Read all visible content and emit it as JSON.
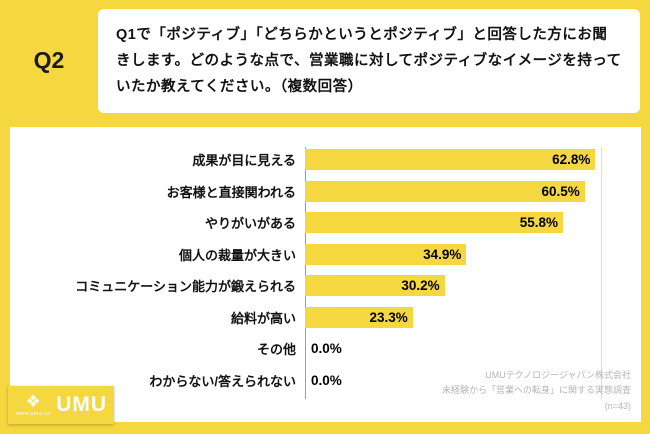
{
  "header": {
    "q_label": "Q2",
    "question": "Q1で「ポジティブ」「どちらかというとポジティブ」と回答した方にお聞きします。どのような点で、営業職に対してポジティブなイメージを持っていたか教えてください。（複数回答）"
  },
  "chart_data": {
    "type": "bar",
    "orientation": "horizontal",
    "title": "",
    "xlabel": "",
    "ylabel": "",
    "xlim": [
      0,
      64
    ],
    "grid": "single-right-gridline",
    "bar_color": "#F5D73F",
    "categories": [
      "成果が目に見える",
      "お客様と直接関われる",
      "やりがいがある",
      "個人の裁量が大きい",
      "コミュニケーション能力が鍛えられる",
      "給料が高い",
      "その他",
      "わからない/答えられない"
    ],
    "values": [
      62.8,
      60.5,
      55.8,
      34.9,
      30.2,
      23.3,
      0.0,
      0.0
    ],
    "value_labels": [
      "62.8%",
      "60.5%",
      "55.8%",
      "34.9%",
      "30.2%",
      "23.3%",
      "0.0%",
      "0.0%"
    ]
  },
  "footer": {
    "line1": "UMUテクノロジージャパン株式会社",
    "line2": "未経験から「営業への転身」に関する実態調査",
    "line3": "(n=43)"
  },
  "logo": {
    "text": "UMU",
    "url": "www.umu.co"
  },
  "colors": {
    "background": "#F5D73F",
    "bar": "#F5D73F",
    "panel": "#FFFFFF",
    "text": "#111111",
    "source_text": "#B5B5B5"
  }
}
